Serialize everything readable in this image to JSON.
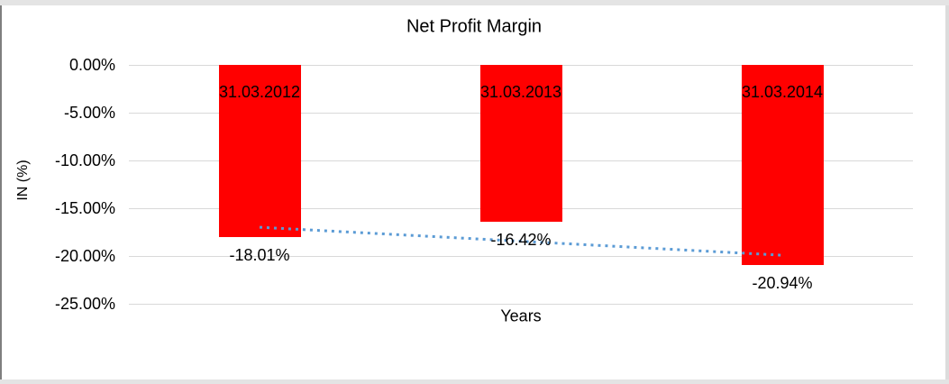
{
  "chart_data": {
    "type": "bar",
    "title": "Net Profit Margin",
    "xlabel": "Years",
    "ylabel": "IN (%)",
    "categories": [
      "31.03.2012",
      "31.03.2013",
      "31.03.2014"
    ],
    "series": [
      {
        "name": "Net Profit Margin",
        "values": [
          -18.01,
          -16.42,
          -20.94
        ]
      }
    ],
    "value_labels": [
      "-18.01%",
      "-16.42%",
      "-20.94%"
    ],
    "ylim": [
      0,
      -25
    ],
    "ytick_values": [
      0,
      -5,
      -10,
      -15,
      -20,
      -25
    ],
    "ytick_labels": [
      "0.00%",
      "-5.00%",
      "-10.00%",
      "-15.00%",
      "-20.00%",
      "-25.00%"
    ],
    "grid": true,
    "legend": "none",
    "bar_color": "#FF0000",
    "gridline_color": "#D9D9D9",
    "text_color": "#000000",
    "trendline": {
      "type": "linear",
      "style": "dotted",
      "color": "#5B9BD5"
    }
  }
}
